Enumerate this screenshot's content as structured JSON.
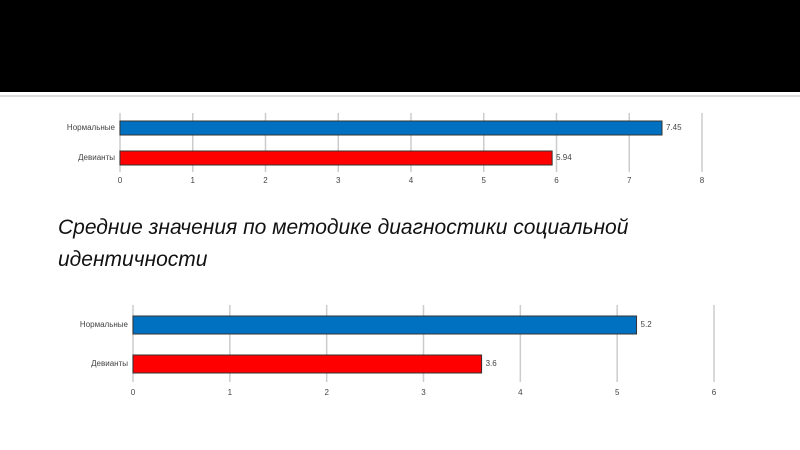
{
  "caption": "Средние значения по методике диагностики социальной идентичности",
  "chart_data": [
    {
      "type": "hbar",
      "categories": [
        "Нормальные",
        "Девианты"
      ],
      "values": [
        7.45,
        5.94
      ],
      "colors": [
        "#0070c0",
        "#ff0000"
      ],
      "xlim": [
        0,
        8
      ],
      "xticks": [
        0,
        1,
        2,
        3,
        4,
        5,
        6,
        7,
        8
      ],
      "grid": true
    },
    {
      "type": "hbar",
      "categories": [
        "Нормальные",
        "Девианты"
      ],
      "values": [
        5.2,
        3.6
      ],
      "colors": [
        "#0070c0",
        "#ff0000"
      ],
      "xlim": [
        0,
        6
      ],
      "xticks": [
        0,
        1,
        2,
        3,
        4,
        5,
        6
      ],
      "grid": true
    }
  ]
}
